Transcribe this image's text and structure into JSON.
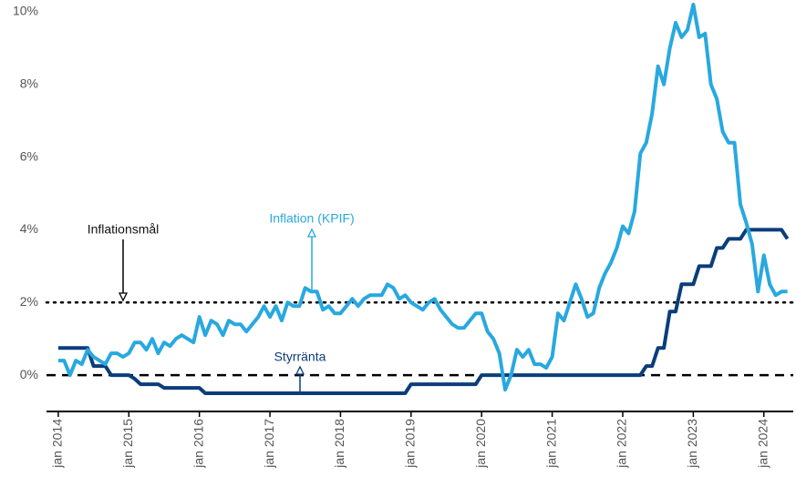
{
  "chart_data": {
    "type": "line",
    "x": [
      "2014-01",
      "2014-02",
      "2014-03",
      "2014-04",
      "2014-05",
      "2014-06",
      "2014-07",
      "2014-08",
      "2014-09",
      "2014-10",
      "2014-11",
      "2014-12",
      "2015-01",
      "2015-02",
      "2015-03",
      "2015-04",
      "2015-05",
      "2015-06",
      "2015-07",
      "2015-08",
      "2015-09",
      "2015-10",
      "2015-11",
      "2015-12",
      "2016-01",
      "2016-02",
      "2016-03",
      "2016-04",
      "2016-05",
      "2016-06",
      "2016-07",
      "2016-08",
      "2016-09",
      "2016-10",
      "2016-11",
      "2016-12",
      "2017-01",
      "2017-02",
      "2017-03",
      "2017-04",
      "2017-05",
      "2017-06",
      "2017-07",
      "2017-08",
      "2017-09",
      "2017-10",
      "2017-11",
      "2017-12",
      "2018-01",
      "2018-02",
      "2018-03",
      "2018-04",
      "2018-05",
      "2018-06",
      "2018-07",
      "2018-08",
      "2018-09",
      "2018-10",
      "2018-11",
      "2018-12",
      "2019-01",
      "2019-02",
      "2019-03",
      "2019-04",
      "2019-05",
      "2019-06",
      "2019-07",
      "2019-08",
      "2019-09",
      "2019-10",
      "2019-11",
      "2019-12",
      "2020-01",
      "2020-02",
      "2020-03",
      "2020-04",
      "2020-05",
      "2020-06",
      "2020-07",
      "2020-08",
      "2020-09",
      "2020-10",
      "2020-11",
      "2020-12",
      "2021-01",
      "2021-02",
      "2021-03",
      "2021-04",
      "2021-05",
      "2021-06",
      "2021-07",
      "2021-08",
      "2021-09",
      "2021-10",
      "2021-11",
      "2021-12",
      "2022-01",
      "2022-02",
      "2022-03",
      "2022-04",
      "2022-05",
      "2022-06",
      "2022-07",
      "2022-08",
      "2022-09",
      "2022-10",
      "2022-11",
      "2022-12",
      "2023-01",
      "2023-02",
      "2023-03",
      "2023-04",
      "2023-05",
      "2023-06",
      "2023-07",
      "2023-08",
      "2023-09",
      "2023-10",
      "2023-11",
      "2023-12",
      "2024-01",
      "2024-02",
      "2024-03",
      "2024-04",
      "2024-05"
    ],
    "series": [
      {
        "name": "Inflation (KPIF)",
        "color": "#29a8e0",
        "values": [
          0.4,
          0.4,
          0.0,
          0.4,
          0.3,
          0.7,
          0.5,
          0.4,
          0.3,
          0.6,
          0.6,
          0.5,
          0.6,
          0.9,
          0.9,
          0.7,
          1.0,
          0.6,
          0.9,
          0.8,
          1.0,
          1.1,
          1.0,
          0.9,
          1.6,
          1.1,
          1.5,
          1.4,
          1.1,
          1.5,
          1.4,
          1.4,
          1.2,
          1.4,
          1.6,
          1.9,
          1.6,
          1.9,
          1.5,
          2.0,
          1.9,
          1.9,
          2.4,
          2.3,
          2.3,
          1.8,
          1.9,
          1.7,
          1.7,
          1.9,
          2.1,
          1.9,
          2.1,
          2.2,
          2.2,
          2.2,
          2.5,
          2.4,
          2.1,
          2.2,
          2.0,
          1.9,
          1.8,
          2.0,
          2.1,
          1.8,
          1.6,
          1.4,
          1.3,
          1.3,
          1.5,
          1.7,
          1.7,
          1.2,
          1.0,
          0.6,
          -0.4,
          0.0,
          0.7,
          0.5,
          0.7,
          0.3,
          0.3,
          0.2,
          0.5,
          1.7,
          1.5,
          2.0,
          2.5,
          2.1,
          1.6,
          1.7,
          2.4,
          2.8,
          3.1,
          3.5,
          4.1,
          3.9,
          4.5,
          6.1,
          6.4,
          7.2,
          8.5,
          8.0,
          9.0,
          9.7,
          9.3,
          9.5,
          10.2,
          9.3,
          9.4,
          8.0,
          7.6,
          6.7,
          6.4,
          6.4,
          4.7,
          4.2,
          3.6,
          2.3,
          3.3,
          2.5,
          2.2,
          2.3,
          2.3
        ]
      },
      {
        "name": "Styrränta",
        "color": "#0b3d7a",
        "values": [
          0.75,
          0.75,
          0.75,
          0.75,
          0.75,
          0.75,
          0.25,
          0.25,
          0.25,
          0,
          0,
          0,
          0,
          -0.1,
          -0.25,
          -0.25,
          -0.25,
          -0.25,
          -0.35,
          -0.35,
          -0.35,
          -0.35,
          -0.35,
          -0.35,
          -0.35,
          -0.5,
          -0.5,
          -0.5,
          -0.5,
          -0.5,
          -0.5,
          -0.5,
          -0.5,
          -0.5,
          -0.5,
          -0.5,
          -0.5,
          -0.5,
          -0.5,
          -0.5,
          -0.5,
          -0.5,
          -0.5,
          -0.5,
          -0.5,
          -0.5,
          -0.5,
          -0.5,
          -0.5,
          -0.5,
          -0.5,
          -0.5,
          -0.5,
          -0.5,
          -0.5,
          -0.5,
          -0.5,
          -0.5,
          -0.5,
          -0.5,
          -0.25,
          -0.25,
          -0.25,
          -0.25,
          -0.25,
          -0.25,
          -0.25,
          -0.25,
          -0.25,
          -0.25,
          -0.25,
          -0.25,
          0,
          0,
          0,
          0,
          0,
          0,
          0,
          0,
          0,
          0,
          0,
          0,
          0,
          0,
          0,
          0,
          0,
          0,
          0,
          0,
          0,
          0,
          0,
          0,
          0,
          0,
          0,
          0,
          0.25,
          0.25,
          0.75,
          0.75,
          1.75,
          1.75,
          2.5,
          2.5,
          2.5,
          3,
          3,
          3,
          3.5,
          3.5,
          3.75,
          3.75,
          3.75,
          4,
          4,
          4,
          4,
          4,
          4,
          4,
          3.75
        ]
      }
    ],
    "reference_lines": [
      {
        "value": 2,
        "style": "dotted",
        "label": "Inflationsmål"
      },
      {
        "value": 0,
        "style": "dashed"
      }
    ],
    "annotations": [
      "Inflation (KPIF)",
      "Styrränta"
    ],
    "xlim": [
      "2013-11",
      "2024-06"
    ],
    "xticks": [
      {
        "value": "2014-01",
        "label": "jan 2014"
      },
      {
        "value": "2015-01",
        "label": "jan 2015"
      },
      {
        "value": "2016-01",
        "label": "jan 2016"
      },
      {
        "value": "2017-01",
        "label": "jan 2017"
      },
      {
        "value": "2018-01",
        "label": "jan 2018"
      },
      {
        "value": "2019-01",
        "label": "jan 2019"
      },
      {
        "value": "2020-01",
        "label": "jan 2020"
      },
      {
        "value": "2021-01",
        "label": "jan 2021"
      },
      {
        "value": "2022-01",
        "label": "jan 2022"
      },
      {
        "value": "2023-01",
        "label": "jan 2023"
      },
      {
        "value": "2024-01",
        "label": "jan 2024"
      }
    ],
    "ylim": [
      -1,
      10.2
    ],
    "yticks": [
      {
        "value": 0,
        "label": "0%"
      },
      {
        "value": 2,
        "label": "2%"
      },
      {
        "value": 4,
        "label": "4%"
      },
      {
        "value": 6,
        "label": "6%"
      },
      {
        "value": 8,
        "label": "8%"
      },
      {
        "value": 10,
        "label": "10%"
      }
    ],
    "grid": false
  }
}
